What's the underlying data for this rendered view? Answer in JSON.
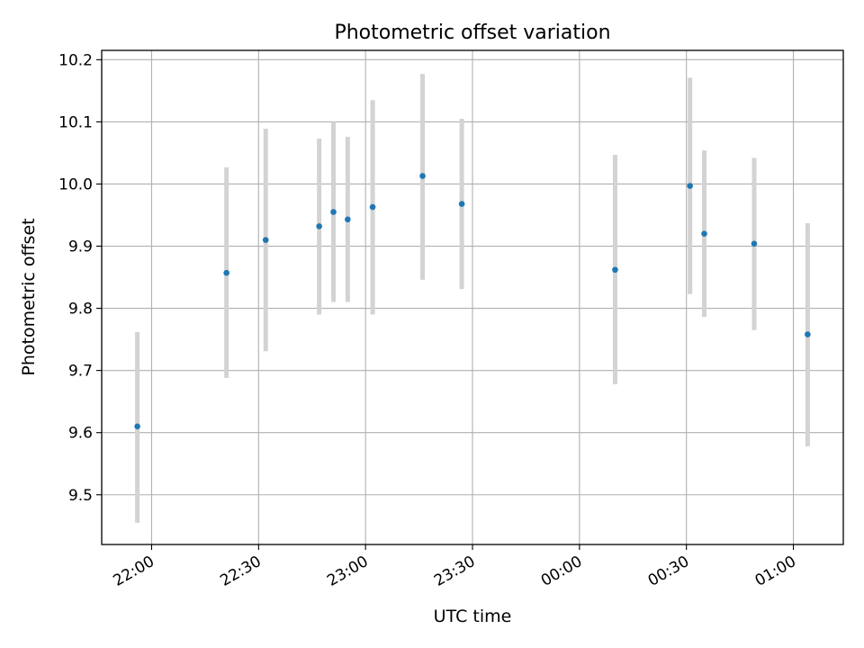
{
  "chart_data": {
    "type": "scatter",
    "title": "Photometric offset variation",
    "xlabel": "UTC time",
    "ylabel": "Photometric offset",
    "grid": true,
    "x_tick_labels": [
      "22:00",
      "22:30",
      "23:00",
      "23:30",
      "00:00",
      "00:30",
      "01:00"
    ],
    "x_ticks": [
      "2000-01-01T22:00:00Z",
      "2000-01-01T22:30:00Z",
      "2000-01-01T23:00:00Z",
      "2000-01-01T23:30:00Z",
      "2000-01-02T00:00:00Z",
      "2000-01-02T00:30:00Z",
      "2000-01-02T01:00:00Z"
    ],
    "xlim": [
      "2000-01-01T21:46:00Z",
      "2000-01-02T01:14:00Z"
    ],
    "y_ticks": [
      9.5,
      9.6,
      9.7,
      9.8,
      9.9,
      10.0,
      10.1,
      10.2
    ],
    "y_tick_labels": [
      "9.5",
      "9.6",
      "9.7",
      "9.8",
      "9.9",
      "10.0",
      "10.1",
      "10.2"
    ],
    "ylim": [
      9.42,
      10.215
    ],
    "marker_color": "#1f77b4",
    "errorbar_color": "#d3d3d3",
    "points": [
      {
        "x": "2000-01-01T21:56:00Z",
        "y": 9.61,
        "ylow": 9.455,
        "yhigh": 9.762
      },
      {
        "x": "2000-01-01T22:21:00Z",
        "y": 9.857,
        "ylow": 9.688,
        "yhigh": 10.027
      },
      {
        "x": "2000-01-01T22:32:00Z",
        "y": 9.91,
        "ylow": 9.731,
        "yhigh": 10.089
      },
      {
        "x": "2000-01-01T22:47:00Z",
        "y": 9.932,
        "ylow": 9.79,
        "yhigh": 10.073
      },
      {
        "x": "2000-01-01T22:51:00Z",
        "y": 9.955,
        "ylow": 9.81,
        "yhigh": 10.1
      },
      {
        "x": "2000-01-01T22:55:00Z",
        "y": 9.943,
        "ylow": 9.81,
        "yhigh": 10.076
      },
      {
        "x": "2000-01-01T23:02:00Z",
        "y": 9.963,
        "ylow": 9.79,
        "yhigh": 10.135
      },
      {
        "x": "2000-01-01T23:16:00Z",
        "y": 10.013,
        "ylow": 9.846,
        "yhigh": 10.177
      },
      {
        "x": "2000-01-01T23:27:00Z",
        "y": 9.968,
        "ylow": 9.831,
        "yhigh": 10.105
      },
      {
        "x": "2000-01-02T00:10:00Z",
        "y": 9.862,
        "ylow": 9.678,
        "yhigh": 10.047
      },
      {
        "x": "2000-01-02T00:31:00Z",
        "y": 9.997,
        "ylow": 9.823,
        "yhigh": 10.171
      },
      {
        "x": "2000-01-02T00:35:00Z",
        "y": 9.92,
        "ylow": 9.786,
        "yhigh": 10.054
      },
      {
        "x": "2000-01-02T00:49:00Z",
        "y": 9.904,
        "ylow": 9.765,
        "yhigh": 10.042
      },
      {
        "x": "2000-01-02T01:04:00Z",
        "y": 9.758,
        "ylow": 9.578,
        "yhigh": 9.937
      }
    ]
  }
}
